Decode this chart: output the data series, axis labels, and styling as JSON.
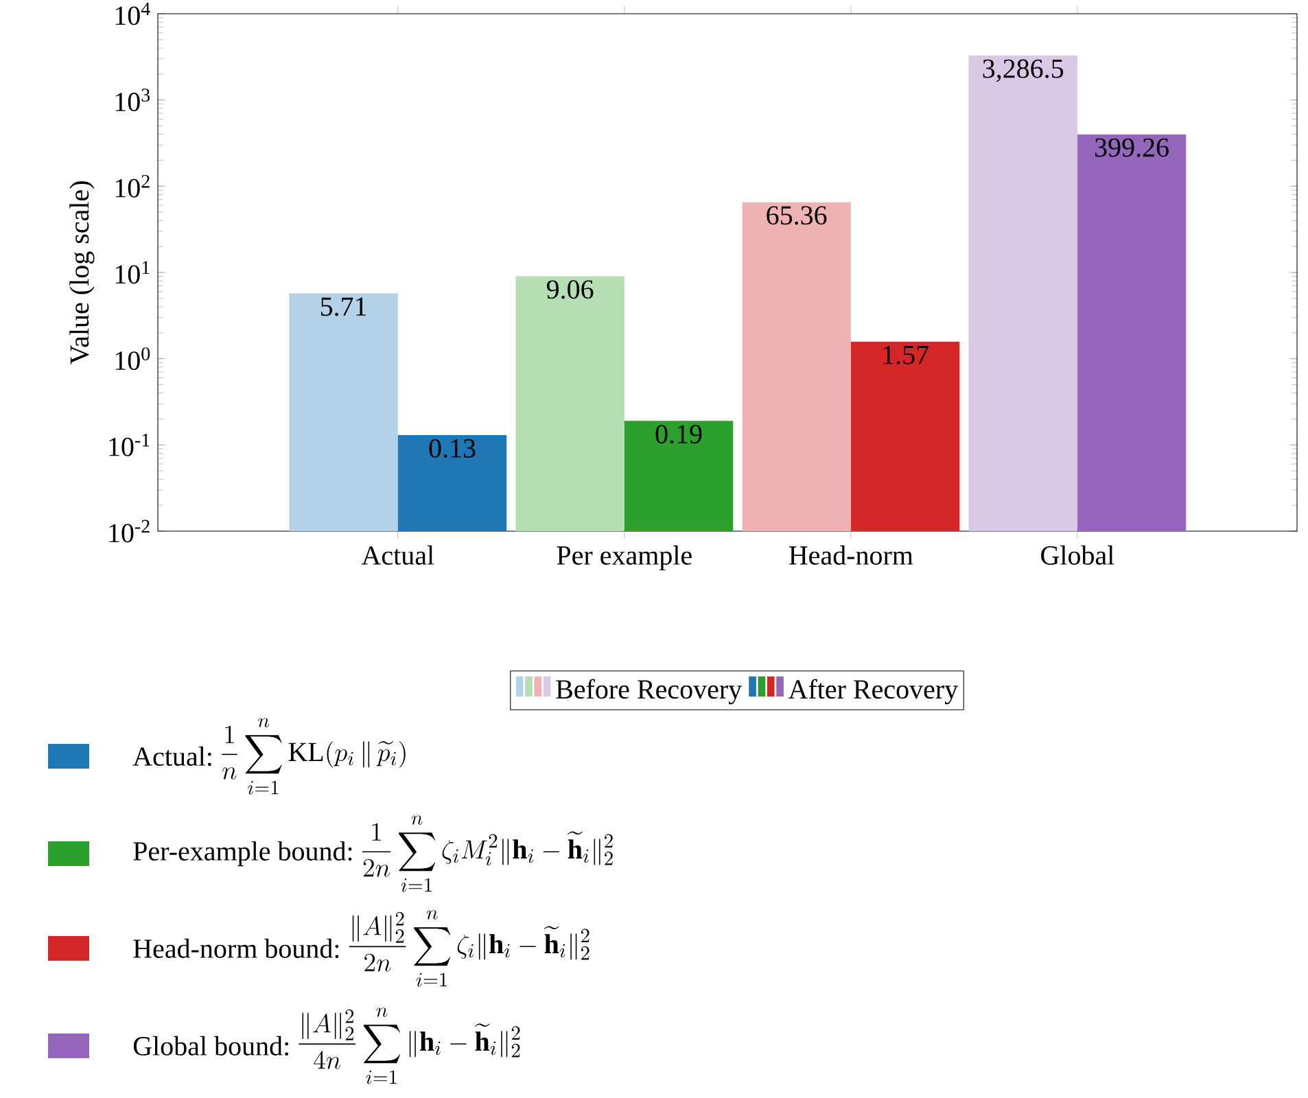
{
  "chart_data": {
    "type": "bar",
    "ylabel": "Value (log scale)",
    "categories": [
      "Actual",
      "Per example",
      "Head-norm",
      "Global"
    ],
    "log": "y",
    "ylim": [
      0.01,
      10000
    ],
    "yticks": [
      {
        "value": 0.01,
        "label": "10$^{-2}$"
      },
      {
        "value": 0.1,
        "label": "10$^{-1}$"
      },
      {
        "value": 1,
        "label": "10$^{0}$"
      },
      {
        "value": 10,
        "label": "10$^{1}$"
      },
      {
        "value": 100,
        "label": "10$^{2}$"
      },
      {
        "value": 1000,
        "label": "10$^{3}$"
      },
      {
        "value": 10000,
        "label": "10$^{4}$"
      }
    ],
    "legend": "bottom",
    "series": [
      {
        "name": "Before Recovery",
        "colors": [
          "#b3d1e7",
          "#b5dfb3",
          "#f0b3b3",
          "#d9c9e6"
        ],
        "values": [
          5.71,
          9.06,
          65.36,
          3286.5
        ],
        "value_labels": [
          "5.71",
          "9.06",
          "65.36",
          "3,286.5"
        ]
      },
      {
        "name": "After Recovery",
        "colors": [
          "#1f77b4",
          "#2ca02c",
          "#d62728",
          "#9467bd"
        ],
        "values": [
          0.13,
          0.19,
          1.57,
          399.26
        ],
        "value_labels": [
          "0.13",
          "0.19",
          "1.57",
          "399.26"
        ]
      }
    ],
    "annotations": [
      "Actual:",
      "\\frac{1}{n}\\sum_{i=1}^{n}\\mathrm{KL}(p_i\\,\\|\\,\\widetilde{p}_i)",
      "Per-example bound:",
      "\\frac{1}{2n}\\sum_{i=1}^{n}\\zeta_i M_i^2\\|\\mathbf{h}_i-\\widetilde{\\mathbf{h}}_i\\|_2^2",
      "Head-norm bound:",
      "\\frac{\\|A\\|_2^2}{2n}\\sum_{i=1}^{n}\\zeta_i\\|\\mathbf{h}_i-\\widetilde{\\mathbf{h}}_i\\|_2^2",
      "Global bound:",
      "\\frac{\\|A\\|_2^2}{4n}\\sum_{i=1}^{n}\\|\\mathbf{h}_i-\\widetilde{\\mathbf{h}}_i\\|_2^2"
    ]
  }
}
